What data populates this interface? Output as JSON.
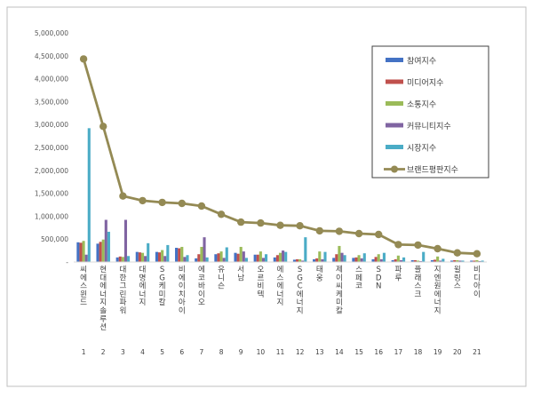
{
  "chart_data": {
    "type": "bar",
    "ylim": [
      0,
      5000000
    ],
    "y_ticks": [
      "-",
      "500,000",
      "1,000,000",
      "1,500,000",
      "2,000,000",
      "2,500,000",
      "3,000,000",
      "3,500,000",
      "4,000,000",
      "4,500,000",
      "5,000,000"
    ],
    "y_tick_values": [
      0,
      500000,
      1000000,
      1500000,
      2000000,
      2500000,
      3000000,
      3500000,
      4000000,
      4500000,
      5000000
    ],
    "categories": [
      "씨에스윈드",
      "현대에너지솔루션",
      "대한그린파워",
      "대명에너지",
      "SG케미칼",
      "비에이치아이",
      "에코바이오",
      "유니슨",
      "서남",
      "오르비텍",
      "에스에너지",
      "SGC에너지",
      "태웅",
      "제이씨케미칼",
      "스페코",
      "SDN",
      "파루",
      "플래스크",
      "지엔원에너지",
      "윌링스",
      "비디아이"
    ],
    "ranks": [
      "1",
      "2",
      "3",
      "4",
      "5",
      "6",
      "7",
      "8",
      "9",
      "10",
      "11",
      "12",
      "13",
      "14",
      "15",
      "16",
      "17",
      "18",
      "19",
      "20",
      "21"
    ],
    "grid": false,
    "legend_position": "top-right",
    "series": [
      {
        "name": "참여지수",
        "kind": "bar",
        "color": "#4472c4",
        "values": [
          430000,
          400000,
          100000,
          220000,
          220000,
          310000,
          80000,
          170000,
          200000,
          160000,
          100000,
          50000,
          60000,
          90000,
          90000,
          60000,
          40000,
          40000,
          40000,
          30000,
          30000
        ]
      },
      {
        "name": "미디어지수",
        "kind": "bar",
        "color": "#c0504d",
        "values": [
          420000,
          440000,
          120000,
          210000,
          210000,
          300000,
          170000,
          190000,
          180000,
          160000,
          150000,
          60000,
          80000,
          170000,
          100000,
          110000,
          60000,
          40000,
          50000,
          40000,
          30000
        ]
      },
      {
        "name": "소통지수",
        "kind": "bar",
        "color": "#9bbb59",
        "values": [
          460000,
          490000,
          110000,
          200000,
          260000,
          330000,
          330000,
          230000,
          330000,
          230000,
          200000,
          60000,
          230000,
          350000,
          150000,
          170000,
          140000,
          30000,
          120000,
          40000,
          40000
        ]
      },
      {
        "name": "커뮤니티지수",
        "kind": "bar",
        "color": "#8064a2",
        "values": [
          160000,
          920000,
          920000,
          130000,
          130000,
          110000,
          540000,
          90000,
          230000,
          90000,
          250000,
          30000,
          60000,
          200000,
          80000,
          60000,
          40000,
          20000,
          30000,
          30000,
          20000
        ]
      },
      {
        "name": "시장지수",
        "kind": "bar",
        "color": "#4bacc6",
        "values": [
          2920000,
          660000,
          130000,
          410000,
          370000,
          150000,
          100000,
          320000,
          90000,
          170000,
          220000,
          540000,
          220000,
          150000,
          190000,
          200000,
          100000,
          220000,
          70000,
          30000,
          30000
        ]
      },
      {
        "name": "브랜드평판지수",
        "kind": "line",
        "color": "#948a54",
        "values": [
          4430000,
          2960000,
          1440000,
          1340000,
          1300000,
          1280000,
          1220000,
          1040000,
          870000,
          850000,
          800000,
          790000,
          680000,
          670000,
          620000,
          600000,
          380000,
          370000,
          290000,
          200000,
          180000
        ]
      }
    ]
  }
}
